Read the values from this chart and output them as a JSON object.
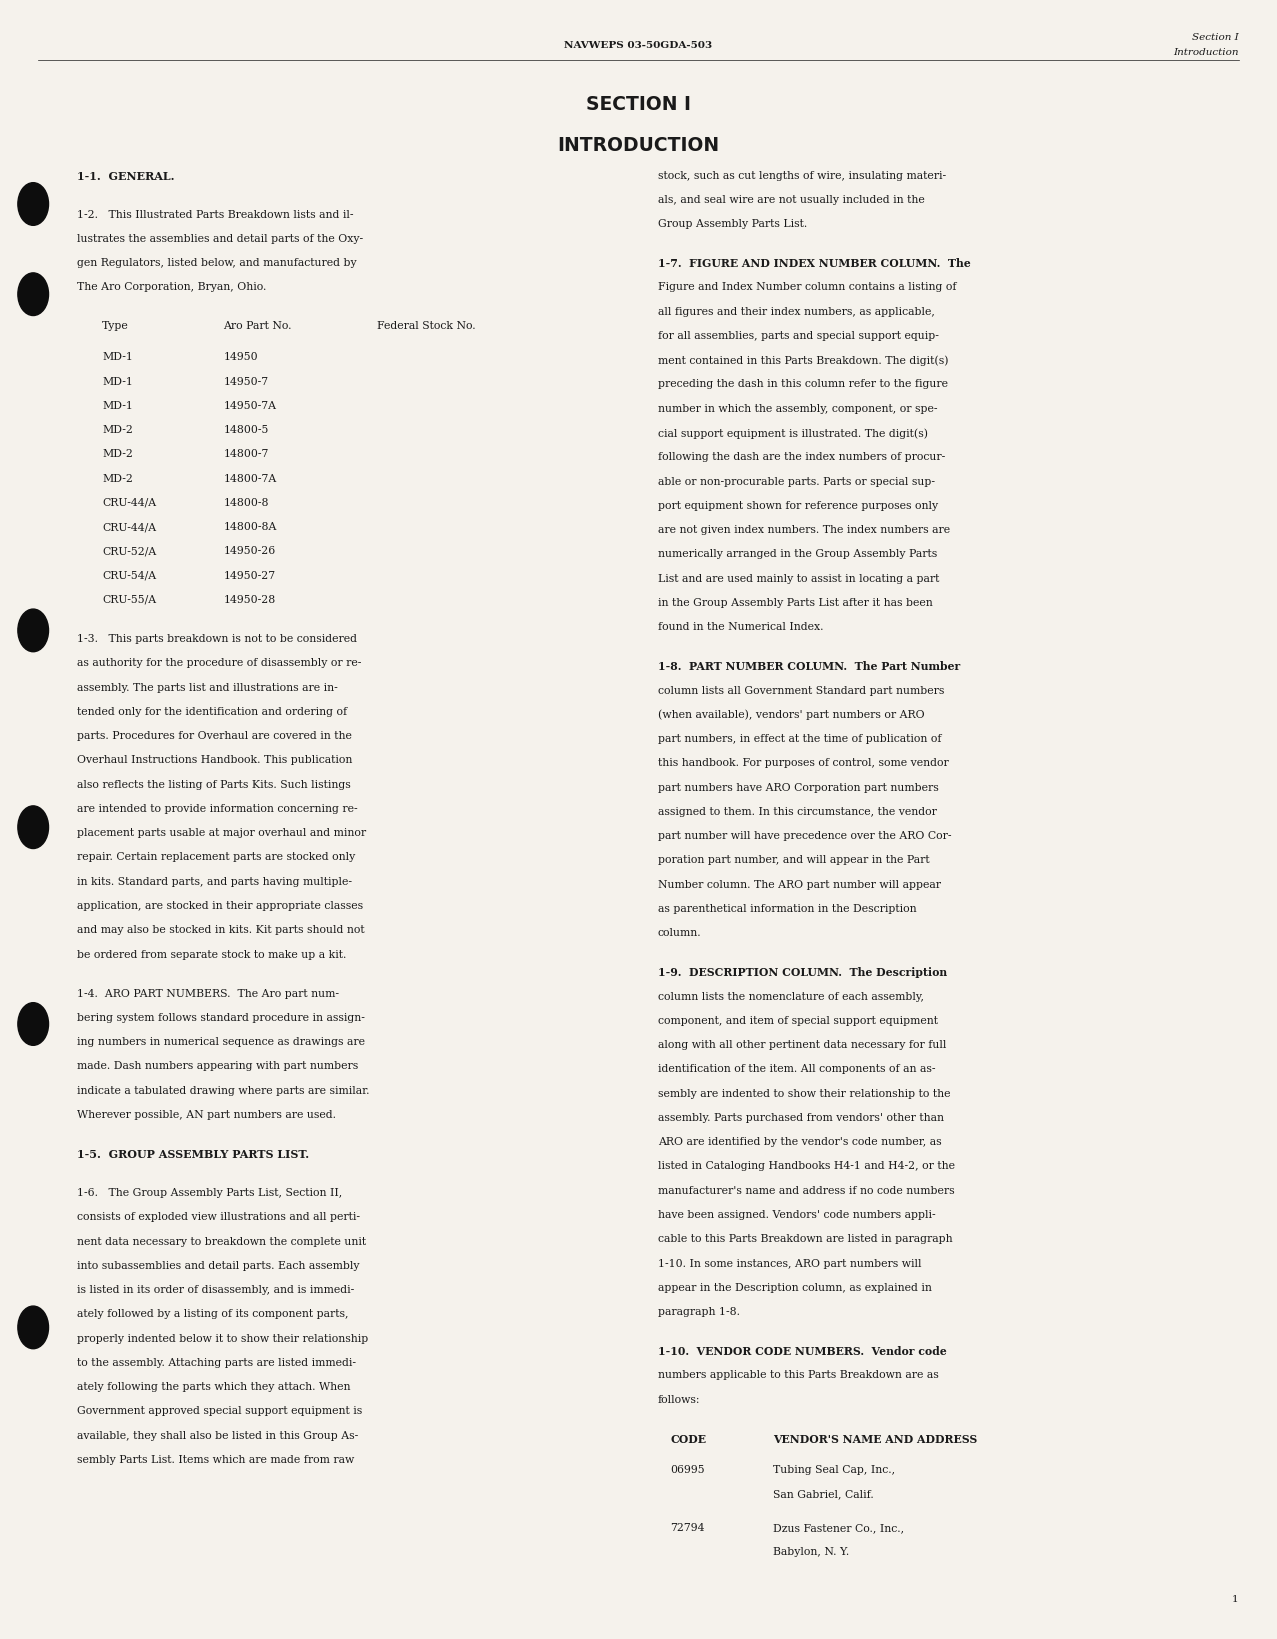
{
  "bg_color": "#f5f2ec",
  "text_color": "#1a1a1a",
  "header_center": "NAVWEPS 03-50GDA-503",
  "header_right_line1": "Section I",
  "header_right_line2": "Introduction",
  "section_title_line1": "SECTION I",
  "section_title_line2": "INTRODUCTION",
  "footer_page": "1",
  "table_types": [
    "MD-1",
    "MD-1",
    "MD-1",
    "MD-2",
    "MD-2",
    "MD-2",
    "CRU-44/A",
    "CRU-44/A",
    "CRU-52/A",
    "CRU-54/A",
    "CRU-55/A"
  ],
  "table_parts": [
    "14950",
    "14950-7",
    "14950-7A",
    "14800-5",
    "14800-7",
    "14800-7A",
    "14800-8",
    "14800-8A",
    "14950-26",
    "14950-27",
    "14950-28"
  ],
  "vendor_codes": [
    "06995",
    "72794"
  ],
  "vendor_names": [
    "Tubing Seal Cap, Inc.,",
    "Dzus Fastener Co., Inc.,"
  ],
  "vendor_addrs": [
    "San Gabriel, Calif.",
    "Babylon, N. Y."
  ]
}
